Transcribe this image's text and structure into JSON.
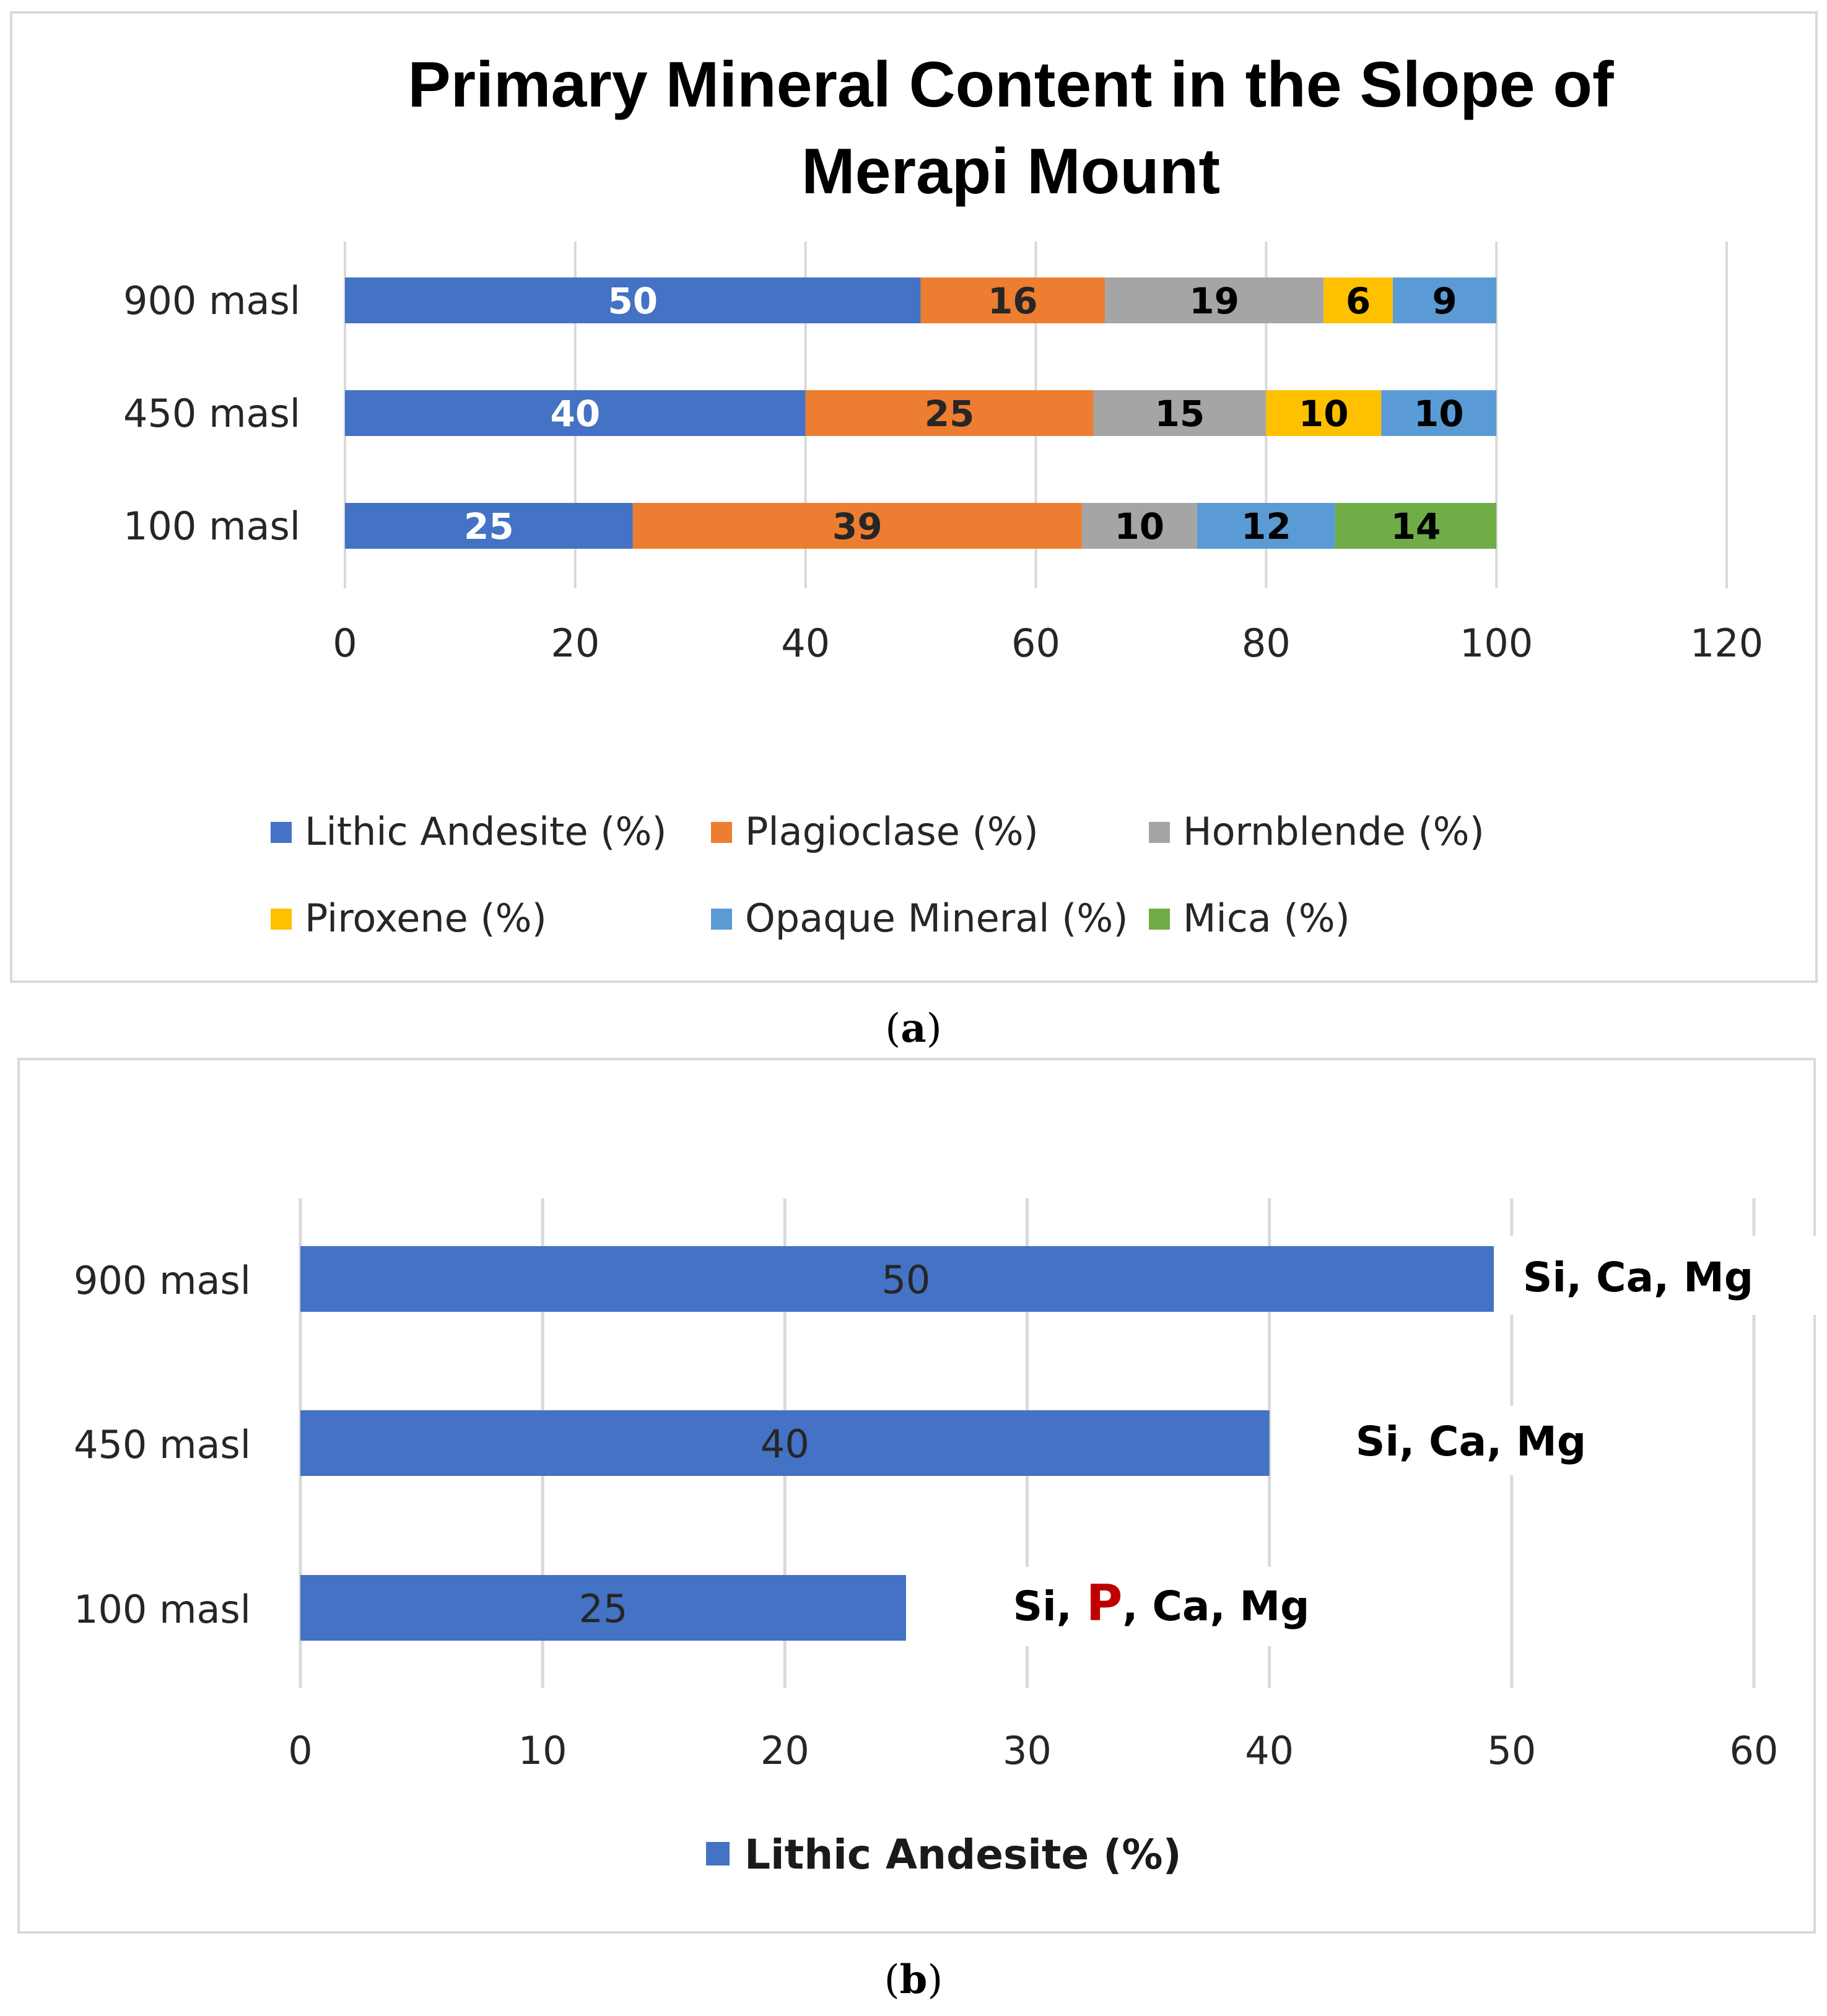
{
  "chart_data": [
    {
      "type": "bar",
      "orientation": "horizontal",
      "stacked": true,
      "title": "Primary Mineral Content in the Slope of Merapi Mount",
      "title_lines": [
        "Primary Mineral Content in the Slope of",
        "Merapi Mount"
      ],
      "caption": "a",
      "categories": [
        "900 masl",
        "450 masl",
        "100 masl"
      ],
      "series": [
        {
          "name": "Lithic Andesite (%)",
          "color": "#4472C4",
          "label_color": "#ffffff",
          "values": [
            50,
            40,
            25
          ]
        },
        {
          "name": "Plagioclase (%)",
          "color": "#ED7D31",
          "label_color": "#262626",
          "values": [
            16,
            25,
            39
          ]
        },
        {
          "name": "Hornblende (%)",
          "color": "#A5A5A5",
          "label_color": "#000000",
          "values": [
            19,
            15,
            10
          ]
        },
        {
          "name": "Piroxene (%)",
          "color": "#FFC000",
          "label_color": "#000000",
          "values": [
            6,
            10,
            0
          ]
        },
        {
          "name": "Opaque Mineral  (%)",
          "color": "#5B9BD5",
          "label_color": "#000000",
          "values": [
            9,
            10,
            12
          ]
        },
        {
          "name": "Mica (%)",
          "color": "#70AD47",
          "label_color": "#000000",
          "values": [
            0,
            0,
            14
          ]
        }
      ],
      "xlim": [
        0,
        120
      ],
      "xticks": [
        "0",
        "20",
        "40",
        "60",
        "80",
        "100",
        "120"
      ],
      "grid": true,
      "legend_position": "bottom"
    },
    {
      "type": "bar",
      "orientation": "horizontal",
      "caption": "b",
      "categories": [
        "900 masl",
        "450 masl",
        "100 masl"
      ],
      "series": [
        {
          "name": "Lithic Andesite (%)",
          "color": "#4472C4",
          "values": [
            50,
            40,
            25
          ]
        }
      ],
      "annotations": [
        {
          "category": "900 masl",
          "parts": [
            {
              "text": "Si,  Ca, Mg",
              "highlight": false
            }
          ]
        },
        {
          "category": "450 masl",
          "parts": [
            {
              "text": "Si, Ca, Mg",
              "highlight": false
            }
          ]
        },
        {
          "category": "100 masl",
          "parts": [
            {
              "text": "Si, ",
              "highlight": false
            },
            {
              "text": "P",
              "highlight": true
            },
            {
              "text": ", Ca, Mg",
              "highlight": false
            }
          ]
        }
      ],
      "xlim": [
        0,
        60
      ],
      "xticks": [
        "0",
        "10",
        "20",
        "30",
        "40",
        "50",
        "60"
      ],
      "grid": true,
      "legend_position": "bottom"
    }
  ]
}
